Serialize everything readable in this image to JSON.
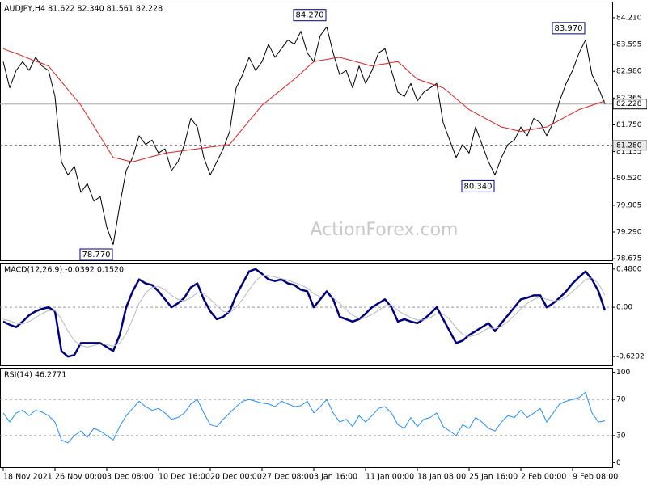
{
  "chart_data": [
    {
      "type": "line",
      "title": "AUDJPY,H4  81.622 82.340 81.561 82.228",
      "watermark": "ActionForex.com",
      "categories": [
        "18 Nov 2021",
        null,
        null,
        null,
        null,
        null,
        null,
        null,
        "26 Nov 00:00",
        null,
        null,
        null,
        null,
        null,
        null,
        null,
        "3 Dec 08:00",
        null,
        null,
        null,
        null,
        null,
        null,
        null,
        "10 Dec 16:00",
        null,
        null,
        null,
        null,
        null,
        null,
        null,
        "20 Dec 00:00",
        null,
        null,
        null,
        null,
        null,
        null,
        null,
        "27 Dec 08:00",
        null,
        null,
        null,
        null,
        null,
        null,
        null,
        "3 Jan 16:00",
        null,
        null,
        null,
        null,
        null,
        null,
        null,
        "11 Jan 00:00",
        null,
        null,
        null,
        null,
        null,
        null,
        null,
        "18 Jan 08:00",
        null,
        null,
        null,
        null,
        null,
        null,
        null,
        "25 Jan 16:00",
        null,
        null,
        null,
        null,
        null,
        null,
        null,
        "2 Feb 00:00",
        null,
        null,
        null,
        null,
        null,
        null,
        null,
        "9 Feb 08:00",
        null,
        null,
        null,
        null,
        null
      ],
      "series": [
        {
          "name": "AUDJPY",
          "color": "#000000",
          "width": 1,
          "values": [
            83.2,
            82.6,
            83.0,
            83.2,
            83.0,
            83.3,
            83.1,
            83.0,
            82.4,
            80.9,
            80.6,
            80.8,
            80.2,
            80.4,
            80.0,
            80.1,
            79.4,
            79.0,
            79.9,
            80.7,
            81.0,
            81.5,
            81.3,
            81.4,
            81.1,
            81.2,
            80.7,
            80.9,
            81.3,
            81.9,
            81.7,
            81.0,
            80.6,
            80.9,
            81.2,
            81.6,
            82.6,
            82.9,
            83.3,
            83.0,
            83.2,
            83.6,
            83.3,
            83.5,
            83.7,
            83.6,
            83.9,
            83.4,
            83.2,
            83.8,
            84.0,
            83.4,
            82.9,
            83.0,
            82.6,
            83.1,
            82.7,
            83.0,
            83.4,
            83.5,
            83.0,
            82.5,
            82.4,
            82.7,
            82.3,
            82.5,
            82.6,
            82.7,
            81.8,
            81.4,
            81.0,
            81.3,
            81.1,
            81.7,
            81.3,
            80.9,
            80.6,
            81.0,
            81.3,
            81.4,
            81.7,
            81.5,
            81.9,
            81.8,
            81.5,
            81.8,
            82.3,
            82.7,
            83.0,
            83.4,
            83.7,
            82.9,
            82.6,
            82.228
          ]
        },
        {
          "name": "MA",
          "color": "#e02020",
          "width": 1,
          "values": [
            83.5,
            83.44,
            83.39,
            83.33,
            83.27,
            83.21,
            83.16,
            83.1,
            82.92,
            82.74,
            82.56,
            82.38,
            82.2,
            81.96,
            81.72,
            81.48,
            81.24,
            81.0,
            80.97,
            80.93,
            80.9,
            80.94,
            80.98,
            81.02,
            81.06,
            81.1,
            81.12,
            81.14,
            81.16,
            81.18,
            81.2,
            81.22,
            81.24,
            81.26,
            81.28,
            81.3,
            81.48,
            81.66,
            81.84,
            82.02,
            82.2,
            82.32,
            82.44,
            82.56,
            82.68,
            82.8,
            82.93,
            83.07,
            83.2,
            83.23,
            83.25,
            83.28,
            83.3,
            83.26,
            83.22,
            83.18,
            83.14,
            83.1,
            83.13,
            83.15,
            83.18,
            83.2,
            83.07,
            82.93,
            82.8,
            82.75,
            82.7,
            82.65,
            82.6,
            82.48,
            82.35,
            82.23,
            82.1,
            82.02,
            81.94,
            81.86,
            81.78,
            81.7,
            81.67,
            81.63,
            81.6,
            81.63,
            81.65,
            81.68,
            81.7,
            81.78,
            81.86,
            81.94,
            82.02,
            82.1,
            82.15,
            82.2,
            82.25,
            82.3
          ]
        }
      ],
      "ylim": [
        78.64,
        84.58
      ],
      "yticks": [
        {
          "value": 84.21,
          "label": "84.210"
        },
        83.595,
        {
          "value": 82.98,
          "label": "82.980"
        },
        82.365,
        {
          "value": 81.75,
          "label": "81.750"
        },
        81.135,
        {
          "value": 80.52,
          "label": "80.520"
        },
        79.905,
        {
          "value": 79.29,
          "label": "79.290"
        },
        78.675
      ],
      "price_line": {
        "value": 82.228,
        "label": "82.228"
      },
      "level_line": {
        "value": 81.28,
        "label": "81.280"
      },
      "annotations": [
        {
          "label": "84.270",
          "value": 84.27,
          "index": 50
        },
        {
          "label": "83.970",
          "value": 83.97,
          "index": 90
        },
        {
          "label": "80.340",
          "value": 80.34,
          "index": 76
        },
        {
          "label": "78.770",
          "value": 78.77,
          "index": 17
        }
      ]
    },
    {
      "type": "line",
      "title": "MACD(12,26,9) -0.0392 0.1520",
      "series": [
        {
          "name": "MACD",
          "color": "#000080",
          "width": 2.5,
          "values": [
            -0.18,
            -0.22,
            -0.25,
            -0.18,
            -0.1,
            -0.05,
            -0.02,
            0.0,
            -0.05,
            -0.55,
            -0.62,
            -0.6,
            -0.45,
            -0.45,
            -0.45,
            -0.45,
            -0.5,
            -0.55,
            -0.35,
            0.0,
            0.2,
            0.35,
            0.3,
            0.28,
            0.2,
            0.1,
            0.0,
            0.05,
            0.12,
            0.25,
            0.3,
            0.1,
            -0.05,
            -0.15,
            -0.12,
            -0.05,
            0.15,
            0.3,
            0.45,
            0.48,
            0.42,
            0.35,
            0.33,
            0.35,
            0.3,
            0.28,
            0.22,
            0.2,
            0.0,
            0.1,
            0.2,
            0.1,
            -0.12,
            -0.15,
            -0.18,
            -0.15,
            -0.08,
            0.0,
            0.05,
            0.1,
            0.0,
            -0.18,
            -0.15,
            -0.18,
            -0.2,
            -0.15,
            -0.08,
            0.0,
            -0.15,
            -0.3,
            -0.45,
            -0.42,
            -0.35,
            -0.3,
            -0.25,
            -0.2,
            -0.3,
            -0.2,
            -0.1,
            0.0,
            0.1,
            0.12,
            0.15,
            0.15,
            0.0,
            0.05,
            0.12,
            0.2,
            0.3,
            0.38,
            0.45,
            0.35,
            0.2,
            -0.04
          ]
        },
        {
          "name": "Signal",
          "color": "#b8b8b8",
          "width": 1,
          "values": [
            -0.15,
            -0.17,
            -0.2,
            -0.21,
            -0.18,
            -0.13,
            -0.08,
            -0.04,
            -0.04,
            -0.15,
            -0.3,
            -0.42,
            -0.48,
            -0.5,
            -0.48,
            -0.46,
            -0.47,
            -0.49,
            -0.45,
            -0.33,
            -0.15,
            0.05,
            0.18,
            0.25,
            0.26,
            0.22,
            0.15,
            0.1,
            0.08,
            0.12,
            0.18,
            0.17,
            0.1,
            0.02,
            -0.05,
            -0.07,
            0.0,
            0.1,
            0.22,
            0.33,
            0.4,
            0.4,
            0.38,
            0.36,
            0.34,
            0.31,
            0.28,
            0.24,
            0.17,
            0.13,
            0.13,
            0.12,
            0.05,
            -0.03,
            -0.1,
            -0.14,
            -0.13,
            -0.09,
            -0.04,
            0.02,
            0.03,
            -0.04,
            -0.09,
            -0.13,
            -0.16,
            -0.16,
            -0.13,
            -0.08,
            -0.09,
            -0.15,
            -0.26,
            -0.34,
            -0.37,
            -0.35,
            -0.31,
            -0.26,
            -0.27,
            -0.24,
            -0.18,
            -0.1,
            -0.02,
            0.05,
            0.1,
            0.13,
            0.1,
            0.08,
            0.09,
            0.13,
            0.2,
            0.27,
            0.35,
            0.37,
            0.3,
            0.15
          ]
        }
      ],
      "ylim": [
        -0.73,
        0.56
      ],
      "yticks": [
        {
          "value": 0.48,
          "label": "0.4800"
        },
        {
          "value": 0,
          "label": "0.00"
        },
        {
          "value": -0.6202,
          "label": "-0.6202"
        }
      ],
      "levels": [
        0
      ]
    },
    {
      "type": "line",
      "title": "RSI(14) 46.2771",
      "series": [
        {
          "name": "RSI",
          "color": "#1e90ff",
          "width": 1,
          "values": [
            55,
            45,
            55,
            58,
            52,
            58,
            56,
            52,
            45,
            25,
            22,
            30,
            35,
            28,
            38,
            35,
            30,
            25,
            40,
            52,
            60,
            68,
            62,
            58,
            60,
            55,
            48,
            50,
            55,
            65,
            70,
            55,
            42,
            40,
            48,
            55,
            62,
            68,
            70,
            68,
            66,
            65,
            62,
            68,
            65,
            62,
            63,
            68,
            55,
            62,
            70,
            55,
            45,
            48,
            40,
            52,
            45,
            52,
            60,
            62,
            55,
            42,
            38,
            50,
            40,
            48,
            50,
            55,
            40,
            35,
            30,
            42,
            38,
            50,
            45,
            38,
            35,
            45,
            52,
            50,
            58,
            50,
            55,
            60,
            45,
            55,
            65,
            68,
            70,
            72,
            78,
            55,
            45,
            46.28
          ]
        }
      ],
      "ylim": [
        -5,
        105
      ],
      "yticks": [
        100,
        70,
        30,
        0
      ],
      "levels": [
        70,
        30
      ]
    }
  ]
}
